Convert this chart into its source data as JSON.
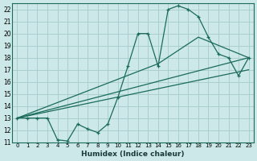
{
  "xlabel": "Humidex (Indice chaleur)",
  "xlim": [
    -0.5,
    23.5
  ],
  "ylim": [
    11,
    22.5
  ],
  "yticks": [
    11,
    12,
    13,
    14,
    15,
    16,
    17,
    18,
    19,
    20,
    21,
    22
  ],
  "xticks": [
    0,
    1,
    2,
    3,
    4,
    5,
    6,
    7,
    8,
    9,
    10,
    11,
    12,
    13,
    14,
    15,
    16,
    17,
    18,
    19,
    20,
    21,
    22,
    23
  ],
  "bg_color": "#cce8e8",
  "grid_color": "#aacece",
  "line_color": "#1a6b5a",
  "line1_x": [
    0,
    1,
    2,
    3,
    4,
    5,
    6,
    7,
    8,
    9,
    10,
    11,
    12,
    13,
    14,
    15,
    16,
    17,
    18,
    19,
    20,
    21,
    22,
    23
  ],
  "line1_y": [
    13,
    13,
    13,
    13,
    11.2,
    11.1,
    12.5,
    12.1,
    11.8,
    12.5,
    14.7,
    17.3,
    20,
    20,
    17.3,
    22,
    22.3,
    22,
    21.4,
    19.7,
    18.3,
    18,
    16.5,
    18
  ],
  "line2_x": [
    0,
    14,
    18,
    23
  ],
  "line2_y": [
    13,
    17.5,
    19.7,
    18
  ],
  "line3_x": [
    0,
    23
  ],
  "line3_y": [
    13,
    18.0
  ],
  "line4_x": [
    0,
    23
  ],
  "line4_y": [
    13,
    17.0
  ]
}
